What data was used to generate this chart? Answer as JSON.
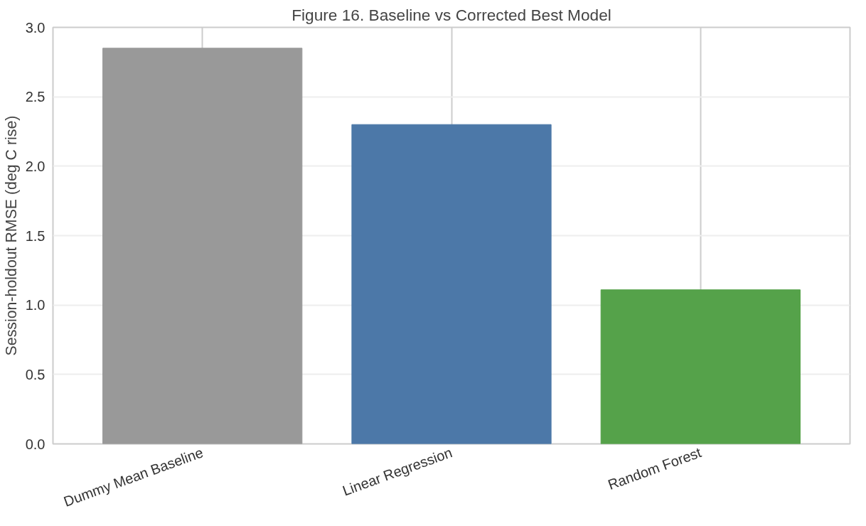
{
  "chart_data": {
    "type": "bar",
    "title": "Figure 16. Baseline vs Corrected Best Model",
    "ylabel": "Session-holdout RMSE (deg C rise)",
    "categories": [
      "Dummy Mean Baseline",
      "Linear Regression",
      "Random Forest"
    ],
    "values": [
      2.85,
      2.3,
      1.11
    ],
    "colors": [
      "#999999",
      "#4c78a8",
      "#55a24a"
    ],
    "ylim": [
      0,
      3.0
    ],
    "yticks": [
      {
        "value": 0,
        "label": "0.0"
      },
      {
        "value": 0.5,
        "label": "0.5"
      },
      {
        "value": 1,
        "label": "1.0"
      },
      {
        "value": 1.5,
        "label": "1.5"
      },
      {
        "value": 2,
        "label": "2.0"
      },
      {
        "value": 2.5,
        "label": "2.5"
      },
      {
        "value": 3,
        "label": "3.0"
      }
    ],
    "grid": true
  }
}
